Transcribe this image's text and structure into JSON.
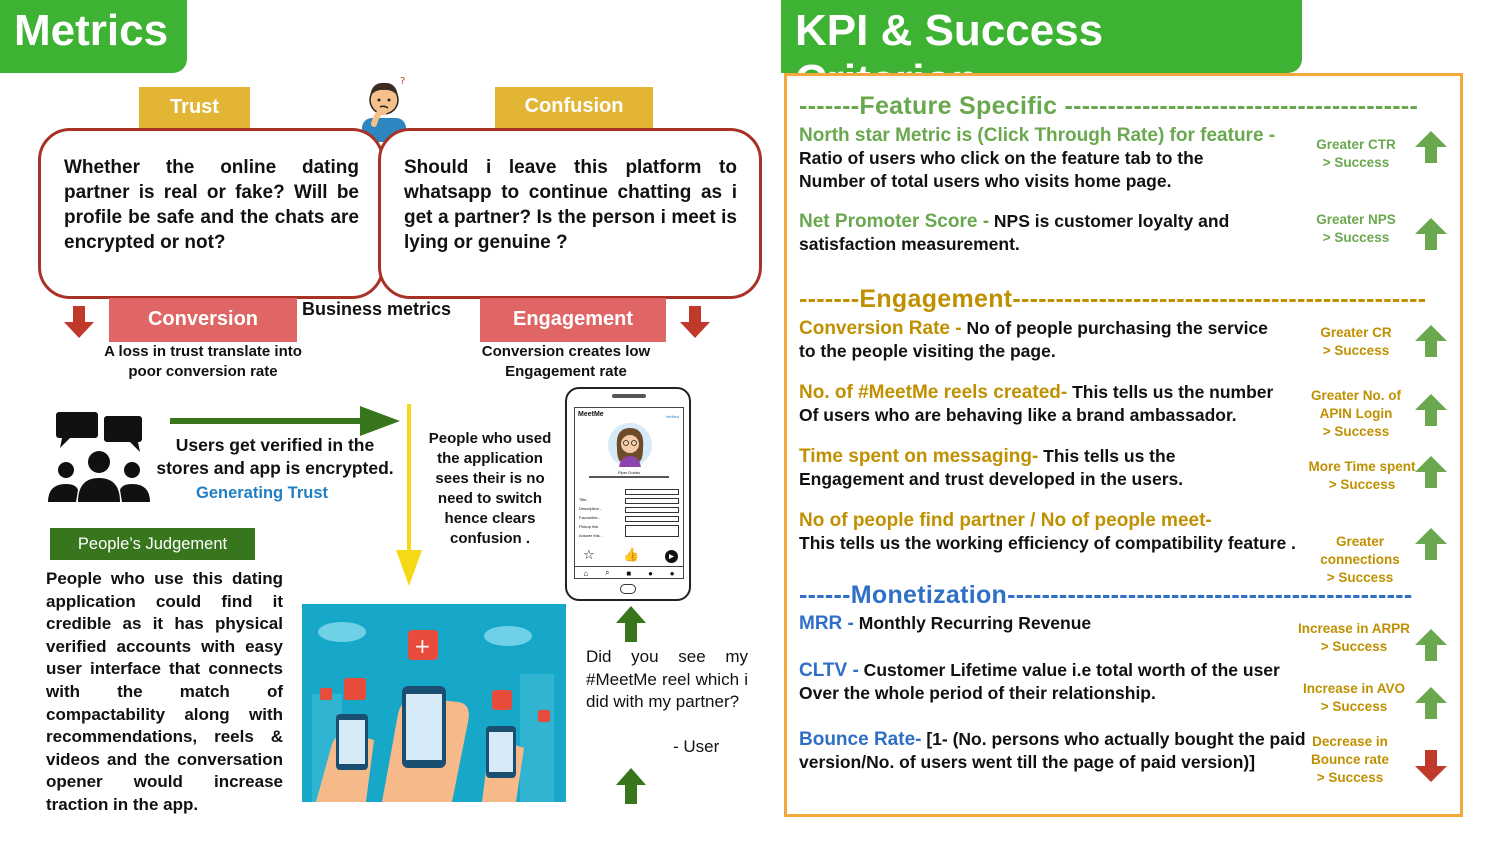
{
  "left": {
    "title": "Metrics",
    "trust_tag": "Trust",
    "confusion_tag": "Confusion",
    "trust_bubble": "Whether the online dating partner is real or fake? Will be profile be safe and the chats are encrypted or not?",
    "confusion_bubble": "Should i leave this platform to whatsapp to continue chatting as i get a partner? Is the person i meet is lying or genuine ?",
    "business_metrics": "Business metrics",
    "conversion_tag": "Conversion",
    "engagement_tag": "Engagement",
    "conversion_note_1": "A loss in trust translate into",
    "conversion_note_2": "poor conversion rate",
    "engagement_note_1": "Conversion creates low",
    "engagement_note_2": "Engagement rate",
    "verified_1": "Users get verified in the",
    "verified_2": "stores and app is encrypted.",
    "generating_trust": "Generating Trust",
    "used_app": [
      "People who used",
      "the application",
      "sees their is no",
      "need to switch",
      "hence clears",
      "confusion ."
    ],
    "judgement_tag": "People’s Judgement",
    "judgement_text": "People who use this dating application could find it credible as it has physical verified accounts with easy user interface that connects with the match of compactability along with recommendations, reels & videos and the conversation opener would increase traction in the app.",
    "quote": "Did you see my #MeetMe reel which i did with my partner?",
    "quote_author": "- User",
    "phone": {
      "app_name": "MeetMe",
      "corner_label": "Verified",
      "profile_name": "Piper Dobbs",
      "fields": [
        "Title -",
        "Description -",
        "Favourites -",
        "Pickup link",
        "Answer this -"
      ]
    },
    "colors": {
      "green": "#3db233",
      "yellow": "#e3b535",
      "red": "#e06666",
      "dark_red": "#a93226"
    }
  },
  "right": {
    "title": "KPI & Success Criterion",
    "feature_head": "-------Feature Specific -----------------------------------------",
    "engagement_head": "-------Engagement------------------------------------------------",
    "monetization_head": "------Monetization-----------------------------------------------",
    "items": [
      {
        "label": "North star Metric is (Click Through Rate) for feature -",
        "desc1": "Ratio of users who click on the feature tab to the",
        "desc2": "Number of total users who visits home page.",
        "crit": [
          "Greater CTR",
          "> Success"
        ],
        "dir": "up"
      },
      {
        "label": "Net Promoter Score -",
        "desc1": " NPS is customer loyalty and",
        "desc2": "satisfaction measurement.",
        "crit": [
          "Greater NPS",
          "> Success"
        ],
        "dir": "up"
      },
      {
        "label": "Conversion Rate -",
        "desc1": " No of people purchasing the service",
        "desc2": "to the people visiting the page.",
        "crit": [
          "Greater CR",
          "> Success"
        ],
        "dir": "up"
      },
      {
        "label": "No. of #MeetMe reels created-",
        "desc1": " This tells us the number",
        "desc2": "Of users who are behaving like a brand ambassador.",
        "crit": [
          "Greater No. of",
          "APIN Login",
          "> Success"
        ],
        "dir": "up"
      },
      {
        "label": "Time spent on messaging-",
        "desc1": " This tells us the",
        "desc2": "Engagement and trust developed in the users.",
        "crit": [
          "More Time spent",
          "> Success"
        ],
        "dir": "up"
      },
      {
        "label": "No of people find partner / No of people meet-",
        "desc1": "",
        "desc2": "This tells us the working efficiency of compatibility feature .",
        "crit": [
          "Greater",
          "connections",
          "> Success"
        ],
        "dir": "up"
      },
      {
        "label": "MRR -",
        "desc1": " Monthly Recurring Revenue",
        "desc2": "",
        "crit": [
          "Increase in ARPR",
          "> Success"
        ],
        "dir": "up"
      },
      {
        "label": "CLTV -",
        "desc1": " Customer Lifetime value i.e total worth of the user",
        "desc2": "Over the whole period of their relationship.",
        "crit": [
          "Increase in AVO",
          "> Success"
        ],
        "dir": "up"
      },
      {
        "label": "Bounce Rate-",
        "desc1": " [1- (No. persons who actually bought the paid",
        "desc2": "version/No. of users went till the page of paid version)]",
        "crit": [
          "Decrease in",
          "Bounce rate",
          "> Success"
        ],
        "dir": "down"
      }
    ],
    "colors": {
      "feature": "#6aa84f",
      "engagement": "#bf9000",
      "monetization": "#2f6fc5",
      "border": "#f2a83a",
      "up_arrow": "#6aa84f",
      "down_arrow": "#c0392b"
    }
  }
}
